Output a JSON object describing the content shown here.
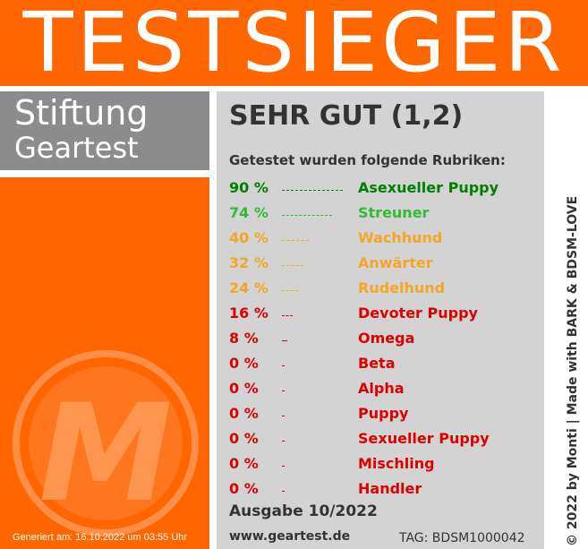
{
  "banner": {
    "title": "TESTSIEGER"
  },
  "brand": {
    "line1": "Stiftung",
    "line2": "Geartest",
    "logo_icon": "m-logo-icon",
    "logo_letter": "M"
  },
  "footer_left": {
    "generated": "Generiert am: 16.10.2022 um 03:55 Uhr"
  },
  "result": {
    "grade": "SEHR GUT (1,2)",
    "subtitle": "Getestet wurden folgende Rubriken:",
    "rubrics": [
      {
        "percent": "90 %",
        "value": 90,
        "name": "Asexueller Puppy",
        "color": "#008000"
      },
      {
        "percent": "74 %",
        "value": 74,
        "name": "Streuner",
        "color": "#33bb33"
      },
      {
        "percent": "40 %",
        "value": 40,
        "name": "Wachhund",
        "color": "#f5a623"
      },
      {
        "percent": "32 %",
        "value": 32,
        "name": "Anwärter",
        "color": "#f5a623"
      },
      {
        "percent": "24 %",
        "value": 24,
        "name": "Rudelhund",
        "color": "#f5a623"
      },
      {
        "percent": "16 %",
        "value": 16,
        "name": "Devoter Puppy",
        "color": "#dd0000"
      },
      {
        "percent": "8 %",
        "value": 8,
        "name": "Omega",
        "color": "#dd0000"
      },
      {
        "percent": "0 %",
        "value": 0,
        "name": "Beta",
        "color": "#dd0000"
      },
      {
        "percent": "0 %",
        "value": 0,
        "name": "Alpha",
        "color": "#dd0000"
      },
      {
        "percent": "0 %",
        "value": 0,
        "name": "Puppy",
        "color": "#dd0000"
      },
      {
        "percent": "0 %",
        "value": 0,
        "name": "Sexueller Puppy",
        "color": "#dd0000"
      },
      {
        "percent": "0 %",
        "value": 0,
        "name": "Mischling",
        "color": "#dd0000"
      },
      {
        "percent": "0 %",
        "value": 0,
        "name": "Handler",
        "color": "#dd0000"
      }
    ],
    "issue": "Ausgabe 10/2022",
    "website": "www.geartest.de",
    "tag": "TAG: BDSM1000042"
  },
  "credit": "© 2022 by Monti | Made with BARK & BDSM-LOVE",
  "colors": {
    "orange": "#ff6600",
    "gray": "#8c8c8c",
    "panel": "#d3d3d3",
    "text": "#333333"
  }
}
